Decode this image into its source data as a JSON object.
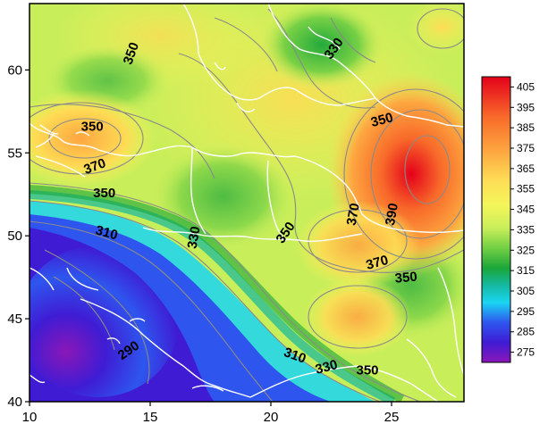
{
  "map": {
    "variable_unit_hint": "",
    "x_ticks": [
      10,
      15,
      20,
      25
    ],
    "y_ticks": [
      40,
      45,
      50,
      55,
      60
    ],
    "x_range": [
      10,
      28
    ],
    "y_range": [
      40,
      64
    ],
    "colorbar": {
      "labels": [
        "405",
        "395",
        "385",
        "375",
        "365",
        "355",
        "345",
        "335",
        "325",
        "315",
        "305",
        "295",
        "285",
        "275"
      ],
      "colors": [
        "#e4001a",
        "#f0301a",
        "#f86a2a",
        "#fda640",
        "#fedc55",
        "#f4f65a",
        "#c8ee5a",
        "#72cf44",
        "#1ba63a",
        "#14b8a0",
        "#1ad6f2",
        "#2e56ee",
        "#3f1cd4",
        "#8a17b8"
      ]
    },
    "contour_labels": [
      {
        "text": "350",
        "lon": 14.2,
        "lat": 61.0,
        "rotate": -70
      },
      {
        "text": "330",
        "lon": 22.6,
        "lat": 61.3,
        "rotate": -55
      },
      {
        "text": "350",
        "lon": 12.6,
        "lat": 56.6,
        "rotate": 0
      },
      {
        "text": "350",
        "lon": 24.6,
        "lat": 57.0,
        "rotate": -15
      },
      {
        "text": "370",
        "lon": 12.7,
        "lat": 54.2,
        "rotate": -20
      },
      {
        "text": "350",
        "lon": 13.1,
        "lat": 52.6,
        "rotate": 0
      },
      {
        "text": "370",
        "lon": 23.4,
        "lat": 51.3,
        "rotate": -80
      },
      {
        "text": "390",
        "lon": 25.0,
        "lat": 51.3,
        "rotate": -80
      },
      {
        "text": "310",
        "lon": 13.2,
        "lat": 50.2,
        "rotate": 15
      },
      {
        "text": "330",
        "lon": 16.8,
        "lat": 49.9,
        "rotate": -80
      },
      {
        "text": "350",
        "lon": 20.6,
        "lat": 50.2,
        "rotate": -55
      },
      {
        "text": "370",
        "lon": 24.4,
        "lat": 48.4,
        "rotate": -15
      },
      {
        "text": "350",
        "lon": 25.6,
        "lat": 47.5,
        "rotate": -5
      },
      {
        "text": "310",
        "lon": 21.0,
        "lat": 42.8,
        "rotate": 20
      },
      {
        "text": "330",
        "lon": 22.3,
        "lat": 42.1,
        "rotate": -15
      },
      {
        "text": "350",
        "lon": 24.0,
        "lat": 41.9,
        "rotate": 0
      },
      {
        "text": "290",
        "lon": 14.1,
        "lat": 43.1,
        "rotate": -35
      }
    ],
    "colors": {
      "frame": "#000000",
      "borders": "#ffffff",
      "contours": "#8a8a8a"
    }
  }
}
